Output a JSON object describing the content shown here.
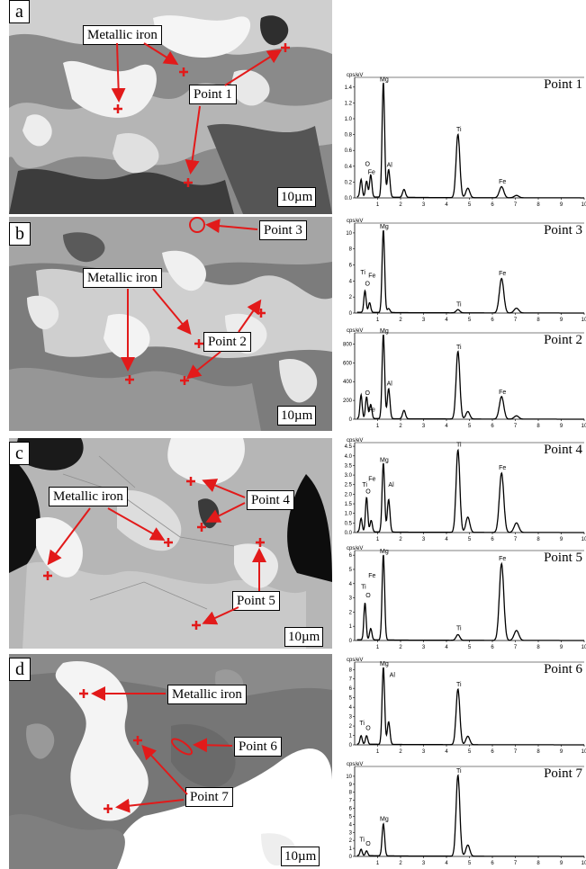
{
  "panels": {
    "a": {
      "label": "a",
      "callouts": [
        "Metallic iron",
        "Point 1"
      ],
      "scale": "10µm"
    },
    "b": {
      "label": "b",
      "callouts": [
        "Point 3",
        "Metallic iron",
        "Point 2"
      ],
      "scale": "10µm"
    },
    "c": {
      "label": "c",
      "callouts": [
        "Metallic iron",
        "Point 4",
        "Point 5"
      ],
      "scale": "10µm"
    },
    "d": {
      "label": "d",
      "callouts": [
        "Metallic iron",
        "Point 6",
        "Point 7"
      ],
      "scale": "10µm"
    }
  },
  "colors": {
    "marker": "#e21a1a",
    "arrow": "#e21a1a"
  },
  "spectra_common": {
    "unit": "cps/eV",
    "x_ticks": [
      "1",
      "2",
      "3",
      "4",
      "5",
      "6",
      "7",
      "8",
      "9",
      "10"
    ]
  },
  "chart_data": [
    {
      "type": "line",
      "point": "Point 1",
      "y_ticks": [
        "0.0",
        "0.2",
        "0.4",
        "0.6",
        "0.8",
        "1.0",
        "1.2",
        "1.4"
      ],
      "ymax": 1.5,
      "peaks": [
        [
          0.28,
          0.22
        ],
        [
          0.52,
          0.2
        ],
        [
          0.7,
          0.28
        ],
        [
          1.25,
          1.45
        ],
        [
          1.48,
          0.35
        ],
        [
          2.15,
          0.1
        ],
        [
          4.5,
          0.8
        ],
        [
          4.93,
          0.12
        ],
        [
          6.4,
          0.14
        ],
        [
          7.05,
          0.03
        ]
      ],
      "labels": [
        {
          "t": "Mg",
          "x": 1.25,
          "y": 1.45
        },
        {
          "t": "O",
          "x": 0.52,
          "y": 0.38
        },
        {
          "t": "Fe",
          "x": 0.7,
          "y": 0.28
        },
        {
          "t": "Al",
          "x": 1.48,
          "y": 0.37
        },
        {
          "t": "Ti",
          "x": 4.5,
          "y": 0.82
        },
        {
          "t": "Fe",
          "x": 6.4,
          "y": 0.16
        }
      ]
    },
    {
      "type": "line",
      "point": "Point 3",
      "y_ticks": [
        "0",
        "2",
        "4",
        "6",
        "8",
        "10"
      ],
      "ymax": 11,
      "peaks": [
        [
          0.45,
          2.7
        ],
        [
          0.65,
          1.2
        ],
        [
          1.25,
          10.3
        ],
        [
          1.48,
          0.5
        ],
        [
          4.5,
          0.4
        ],
        [
          6.4,
          4.3
        ],
        [
          7.05,
          0.6
        ]
      ],
      "labels": [
        {
          "t": "Mg",
          "x": 1.25,
          "y": 10.3
        },
        {
          "t": "Ti",
          "x": 0.32,
          "y": 4.6
        },
        {
          "t": "O",
          "x": 0.52,
          "y": 3.2
        },
        {
          "t": "Fe",
          "x": 0.72,
          "y": 4.2
        },
        {
          "t": "Ti",
          "x": 4.5,
          "y": 0.6
        },
        {
          "t": "Fe",
          "x": 6.4,
          "y": 4.5
        }
      ]
    },
    {
      "type": "line",
      "point": "Point 2",
      "y_ticks": [
        "0",
        "200",
        "400",
        "600",
        "800"
      ],
      "ymax": 900,
      "peaks": [
        [
          0.28,
          250
        ],
        [
          0.52,
          230
        ],
        [
          0.7,
          150
        ],
        [
          1.25,
          900
        ],
        [
          1.48,
          320
        ],
        [
          2.15,
          90
        ],
        [
          4.5,
          720
        ],
        [
          4.93,
          80
        ],
        [
          6.4,
          240
        ],
        [
          7.05,
          35
        ]
      ],
      "labels": [
        {
          "t": "Mg",
          "x": 1.25,
          "y": 900
        },
        {
          "t": "O",
          "x": 0.52,
          "y": 240
        },
        {
          "t": "Fe",
          "x": 0.7,
          "y": 60
        },
        {
          "t": "Al",
          "x": 1.48,
          "y": 340
        },
        {
          "t": "Ti",
          "x": 4.5,
          "y": 730
        },
        {
          "t": "Fe",
          "x": 6.4,
          "y": 250
        }
      ]
    },
    {
      "type": "line",
      "point": "Point 4",
      "y_ticks": [
        "0.0",
        "0.5",
        "1.0",
        "1.5",
        "2.0",
        "2.5",
        "3.0",
        "3.5",
        "4.0",
        "4.5"
      ],
      "ymax": 4.6,
      "peaks": [
        [
          0.28,
          0.7
        ],
        [
          0.52,
          1.8
        ],
        [
          0.72,
          0.6
        ],
        [
          1.25,
          3.6
        ],
        [
          1.48,
          1.7
        ],
        [
          4.5,
          4.3
        ],
        [
          4.93,
          0.8
        ],
        [
          6.4,
          3.1
        ],
        [
          7.05,
          0.5
        ]
      ],
      "labels": [
        {
          "t": "Mg",
          "x": 1.25,
          "y": 3.6
        },
        {
          "t": "Fe",
          "x": 0.72,
          "y": 2.6
        },
        {
          "t": "Ti",
          "x": 0.4,
          "y": 2.3
        },
        {
          "t": "O",
          "x": 0.55,
          "y": 1.95
        },
        {
          "t": "Al",
          "x": 1.55,
          "y": 2.3
        },
        {
          "t": "Ti",
          "x": 4.5,
          "y": 4.4
        },
        {
          "t": "Fe",
          "x": 6.4,
          "y": 3.2
        }
      ]
    },
    {
      "type": "line",
      "point": "Point 5",
      "y_ticks": [
        "0",
        "1",
        "2",
        "3",
        "4",
        "5",
        "6"
      ],
      "ymax": 6.2,
      "peaks": [
        [
          0.45,
          2.6
        ],
        [
          0.7,
          0.8
        ],
        [
          1.25,
          6.0
        ],
        [
          4.5,
          0.4
        ],
        [
          6.4,
          5.4
        ],
        [
          7.05,
          0.7
        ]
      ],
      "labels": [
        {
          "t": "Mg",
          "x": 1.25,
          "y": 6.0
        },
        {
          "t": "Fe",
          "x": 0.72,
          "y": 4.3
        },
        {
          "t": "Ti",
          "x": 0.35,
          "y": 3.5
        },
        {
          "t": "O",
          "x": 0.55,
          "y": 2.9
        },
        {
          "t": "Ti",
          "x": 4.5,
          "y": 0.6
        },
        {
          "t": "Fe",
          "x": 6.4,
          "y": 5.5
        }
      ]
    },
    {
      "type": "line",
      "point": "Point 6",
      "y_ticks": [
        "0",
        "1",
        "2",
        "3",
        "4",
        "5",
        "6",
        "7",
        "8"
      ],
      "ymax": 8.6,
      "peaks": [
        [
          0.28,
          0.9
        ],
        [
          0.52,
          0.9
        ],
        [
          1.25,
          8.2
        ],
        [
          1.48,
          2.4
        ],
        [
          4.5,
          5.9
        ],
        [
          4.93,
          0.9
        ]
      ],
      "labels": [
        {
          "t": "Mg",
          "x": 1.25,
          "y": 8.2
        },
        {
          "t": "Al",
          "x": 1.6,
          "y": 7.0
        },
        {
          "t": "Ti",
          "x": 0.28,
          "y": 1.9
        },
        {
          "t": "O",
          "x": 0.55,
          "y": 1.4
        },
        {
          "t": "Ti",
          "x": 4.5,
          "y": 6.0
        }
      ]
    },
    {
      "type": "line",
      "point": "Point 7",
      "y_ticks": [
        "0",
        "1",
        "2",
        "3",
        "4",
        "5",
        "6",
        "7",
        "8",
        "9",
        "10"
      ],
      "ymax": 11,
      "peaks": [
        [
          0.28,
          0.8
        ],
        [
          0.52,
          0.6
        ],
        [
          1.25,
          4.0
        ],
        [
          4.5,
          10.1
        ],
        [
          4.93,
          1.4
        ]
      ],
      "labels": [
        {
          "t": "Mg",
          "x": 1.25,
          "y": 4.2
        },
        {
          "t": "Ti",
          "x": 0.28,
          "y": 1.6
        },
        {
          "t": "O",
          "x": 0.55,
          "y": 1.1
        },
        {
          "t": "Ti",
          "x": 4.5,
          "y": 10.2
        }
      ]
    }
  ]
}
